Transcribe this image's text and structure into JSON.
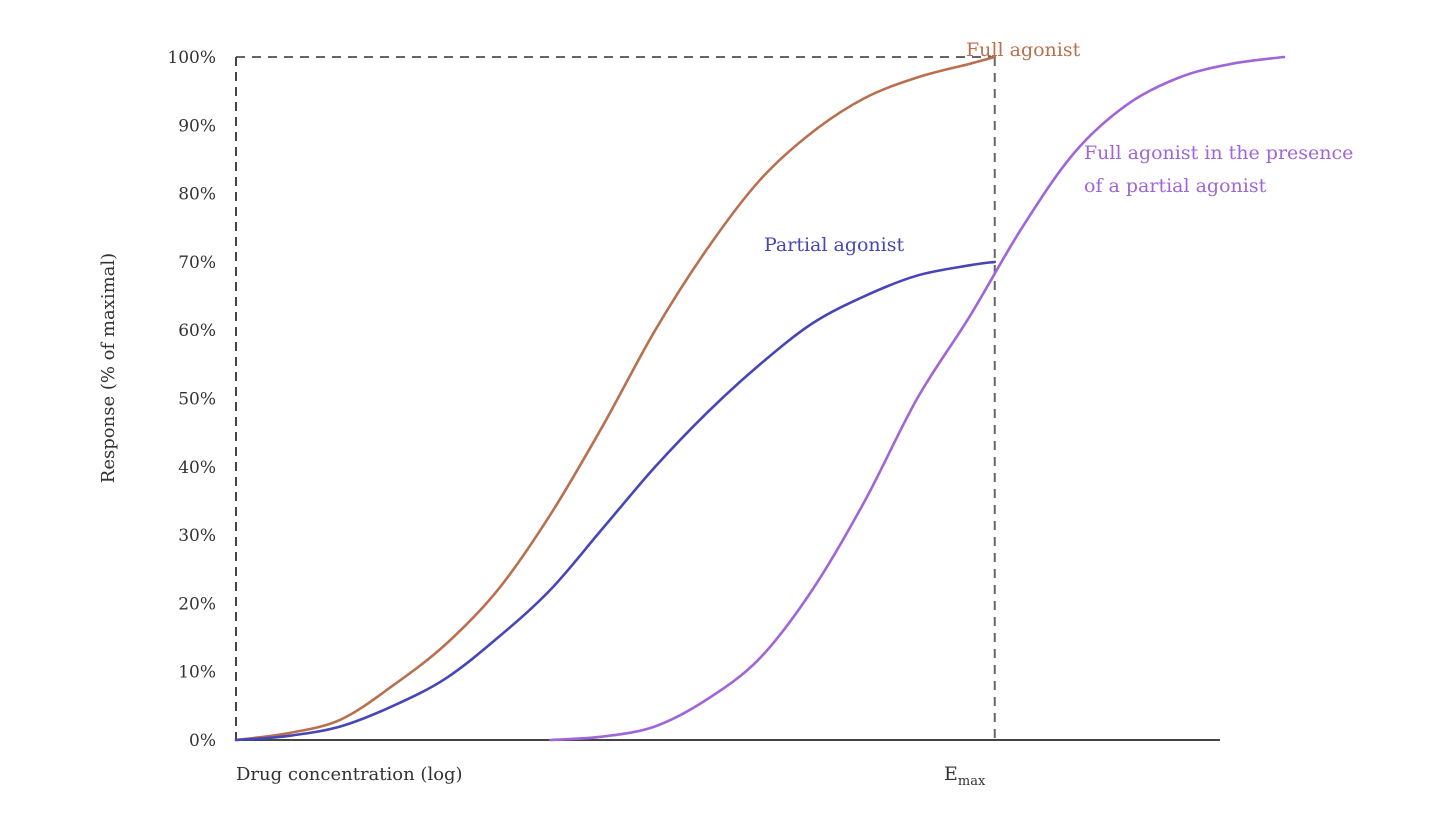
{
  "chart_data": {
    "type": "line",
    "title": "",
    "xlabel": "Drug concentration (log)",
    "ylabel": "Response (% of maximal)",
    "ylim": [
      0,
      100
    ],
    "xlim": [
      0,
      10
    ],
    "x_scale": "log",
    "grid": false,
    "yticks": [
      "0%",
      "10%",
      "20%",
      "30%",
      "40%",
      "50%",
      "60%",
      "70%",
      "80%",
      "90%",
      "100%"
    ],
    "ytick_values": [
      0,
      10,
      20,
      30,
      40,
      50,
      60,
      70,
      80,
      90,
      100
    ],
    "emax_label": {
      "main": "E",
      "sub": "max"
    },
    "emax_x": 7.24,
    "series": [
      {
        "name": "Full agonist",
        "color": "#b8704f",
        "x": [
          0,
          0.5,
          1,
          1.5,
          2,
          2.5,
          3,
          3.5,
          4,
          4.5,
          5,
          5.5,
          6,
          6.5,
          7,
          7.24
        ],
        "y": [
          0,
          1,
          3,
          8,
          14,
          22,
          33,
          46,
          60,
          72,
          82,
          89,
          94,
          97,
          99,
          100
        ]
      },
      {
        "name": "Partial agonist",
        "color": "#4646b8",
        "x": [
          0,
          0.5,
          1,
          1.5,
          2,
          2.5,
          3,
          3.5,
          4,
          4.5,
          5,
          5.5,
          6,
          6.5,
          7,
          7.24
        ],
        "y": [
          0,
          0.6,
          2,
          5,
          9,
          15,
          22,
          31,
          40,
          48,
          55,
          61,
          65,
          68,
          69.5,
          70
        ]
      },
      {
        "name": "Full agonist in the presence of a partial agonist",
        "name_lines": [
          "Full agonist in the presence",
          "of a partial agonist"
        ],
        "color": "#a066d8",
        "x": [
          3,
          3.5,
          4,
          4.5,
          5,
          5.5,
          6,
          6.5,
          7,
          7.5,
          8,
          8.5,
          9,
          9.5,
          10
        ],
        "y": [
          0,
          0.5,
          2,
          6,
          12,
          22,
          35,
          50,
          62,
          75,
          86,
          93,
          97,
          99,
          100
        ]
      }
    ]
  }
}
